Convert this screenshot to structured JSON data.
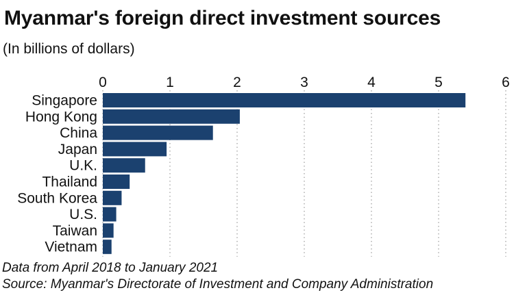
{
  "title": "Myanmar's foreign direct investment sources",
  "subtitle": "(In billions of dollars)",
  "footnotes": {
    "period": "Data from April 2018 to January 2021",
    "source": "Source: Myanmar's Directorate of Investment and Company Administration"
  },
  "chart_data": {
    "type": "bar",
    "orientation": "horizontal",
    "title": "Myanmar's foreign direct investment sources",
    "subtitle": "(In billions of dollars)",
    "categories": [
      "Singapore",
      "Hong Kong",
      "China",
      "Japan",
      "U.K.",
      "Thailand",
      "South Korea",
      "U.S.",
      "Taiwan",
      "Vietnam"
    ],
    "values": [
      5.4,
      2.04,
      1.64,
      0.95,
      0.63,
      0.4,
      0.28,
      0.2,
      0.16,
      0.13
    ],
    "xlim": [
      0,
      6
    ],
    "xticks": [
      0,
      1,
      2,
      3,
      4,
      5,
      6
    ],
    "xaxis_position": "top",
    "grid": "vertical-dotted",
    "bar_color": "#1b416f",
    "grid_color": "#9a9a9a"
  }
}
